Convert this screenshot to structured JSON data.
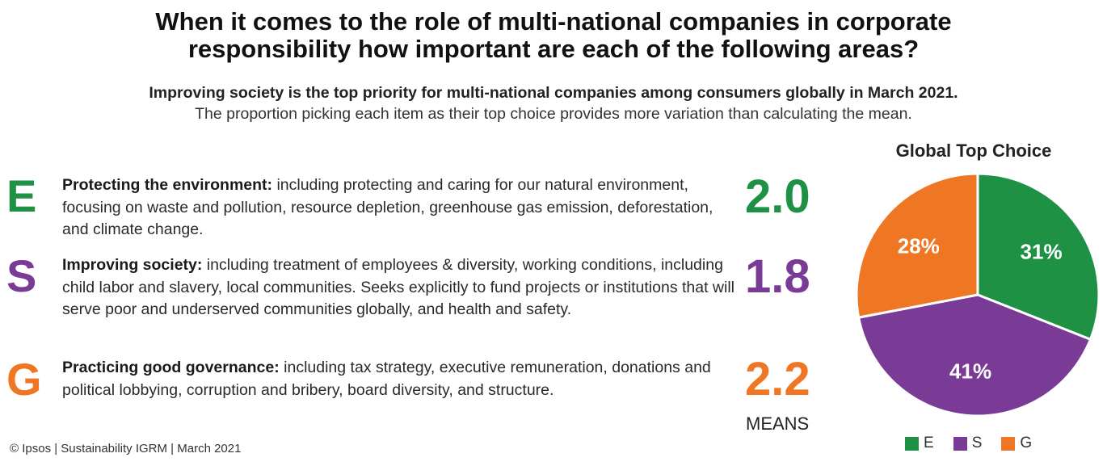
{
  "title": {
    "line1": "When it comes to the role of multi-national companies in corporate",
    "line2": "responsibility how important are each of the following areas?"
  },
  "subtitle": {
    "line1": "Improving society is the top priority for multi-national companies among consumers globally in March 2021.",
    "line2": "The proportion picking each item as their top choice provides more variation than calculating the mean."
  },
  "rows": [
    {
      "letter": "E",
      "lead": "Protecting the ",
      "keyword": "environment:",
      "text": " including protecting and caring for our natural environment, focusing on waste and pollution, resource depletion, greenhouse gas emission, deforestation, and climate change.",
      "mean": "2.0"
    },
    {
      "letter": "S",
      "lead": "Improving ",
      "keyword": "society:",
      "text": " including treatment of employees & diversity, working conditions, including child labor and slavery, local communities. Seeks explicitly to fund projects or institutions that will serve poor and underserved communities globally, and health and safety.",
      "mean": "1.8"
    },
    {
      "letter": "G",
      "lead": "Practicing good ",
      "keyword": "governance:",
      "text": " including tax strategy, executive remuneration, donations and political lobbying, corruption and bribery, board diversity, and structure.",
      "mean": "2.2"
    }
  ],
  "means_label": "MEANS",
  "footer": "© Ipsos | Sustainability IGRM | March 2021",
  "colors": {
    "E": "#1e9144",
    "S": "#7a3b96",
    "G": "#ef7622"
  },
  "chart_data": {
    "type": "pie",
    "title": "Global Top Choice",
    "categories": [
      "E",
      "S",
      "G"
    ],
    "values": [
      31,
      41,
      28
    ],
    "labels": [
      "31%",
      "41%",
      "28%"
    ],
    "colors": [
      "#1e9144",
      "#7a3b96",
      "#ef7622"
    ],
    "legend": "bottom"
  }
}
